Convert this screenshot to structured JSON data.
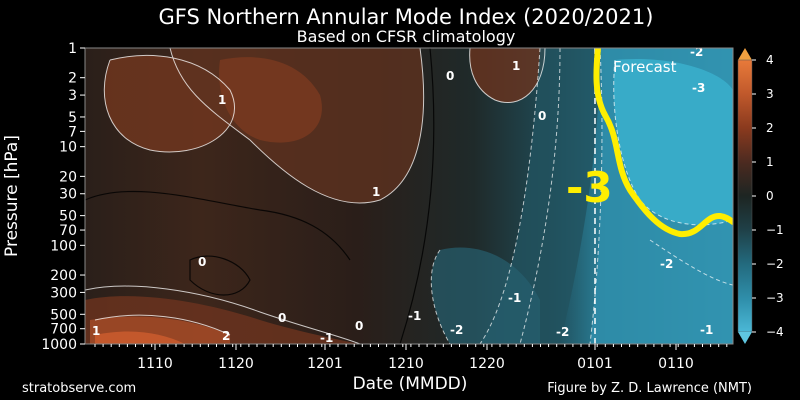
{
  "chart_data": {
    "type": "heatmap",
    "title": "GFS Northern Annular Mode Index (2020/2021)",
    "subtitle": "Based on CFSR climatology",
    "xlabel": "Date (MMDD)",
    "ylabel": "Pressure [hPa]",
    "x_ticks": [
      "1110",
      "1120",
      "1201",
      "1210",
      "1220",
      "0101",
      "0110"
    ],
    "y_ticks": [
      "1",
      "2",
      "3",
      "5",
      "7",
      "10",
      "20",
      "30",
      "50",
      "70",
      "100",
      "200",
      "300",
      "500",
      "700",
      "1000"
    ],
    "y_scale": "log",
    "y_inverted": true,
    "colorbar_ticks": [
      "4",
      "3",
      "2",
      "1",
      "0",
      "−1",
      "−2",
      "−3",
      "−4"
    ],
    "colorbar_range": [
      -4,
      4
    ],
    "forecast_start": "0101",
    "forecast_label": "Forecast",
    "annotation": "-3",
    "contour_labels": [
      "1",
      "-1",
      "0",
      "-2",
      "-3",
      "2"
    ],
    "colors": {
      "positive": "#8a3a1e",
      "neutral": "#1d2522",
      "negative": "#3aa6c4",
      "highlight": "#ffee00"
    }
  },
  "footer": {
    "left": "stratobserve.com",
    "right": "Figure by Z. D. Lawrence (NMT)"
  }
}
